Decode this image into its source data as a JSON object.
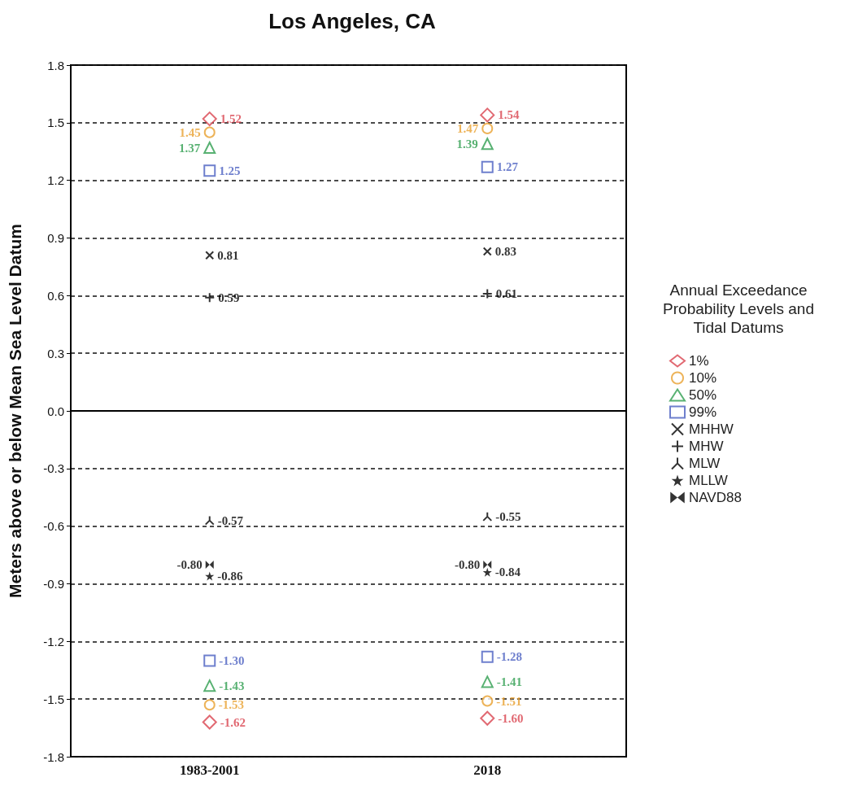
{
  "chart_data": {
    "type": "scatter",
    "title": "Los Angeles, CA",
    "ylabel": "Meters above or below Mean Sea Level Datum",
    "legend_title": "Annual Exceedance\nProbability Levels and\nTidal Datums",
    "categories": [
      "1983-2001",
      "2018"
    ],
    "series": [
      {
        "name": "1%",
        "color": "#d9434f",
        "marker": "diamond",
        "values": [
          1.52,
          1.54
        ],
        "value_labels": [
          "1.52",
          "1.54"
        ]
      },
      {
        "name": "10%",
        "color": "#e8a030",
        "marker": "circle",
        "values": [
          1.45,
          1.47
        ],
        "value_labels": [
          "1.45",
          "1.47"
        ]
      },
      {
        "name": "50%",
        "color": "#2e9e4f",
        "marker": "triangle",
        "values": [
          1.37,
          1.39
        ],
        "value_labels": [
          "1.37",
          "1.39"
        ]
      },
      {
        "name": "99%",
        "color": "#4a5fc1",
        "marker": "square",
        "values": [
          1.25,
          1.27
        ],
        "value_labels": [
          "1.25",
          "1.27"
        ]
      },
      {
        "name": "MHHW",
        "color": "#000000",
        "marker": "x",
        "values": [
          0.81,
          0.83
        ],
        "value_labels": [
          "0.81",
          "0.83"
        ]
      },
      {
        "name": "MHW",
        "color": "#000000",
        "marker": "plus",
        "values": [
          0.59,
          0.61
        ],
        "value_labels": [
          "0.59",
          "0.61"
        ]
      },
      {
        "name": "MLW",
        "color": "#000000",
        "values": [
          -0.57,
          -0.55
        ],
        "value_labels": [
          "-0.57",
          "-0.55"
        ]
      },
      {
        "name": "MLLW",
        "color": "#000000",
        "marker": "star",
        "values": [
          -0.86,
          -0.84
        ],
        "value_labels": [
          "-0.86",
          "-0.84"
        ]
      },
      {
        "name": "NAVD88",
        "color": "#000000",
        "values": [
          -0.8,
          -0.8
        ],
        "value_labels": [
          "-0.80",
          "-0.80"
        ]
      },
      {
        "color": "#d9434f",
        "marker": "diamond",
        "values": [
          -1.62,
          -1.6
        ],
        "value_labels": [
          "-1.62",
          "-1.60"
        ]
      },
      {
        "color": "#e8a030",
        "marker": "circle",
        "values": [
          -1.53,
          -1.51
        ],
        "value_labels": [
          "-1.53",
          "-1.51"
        ]
      },
      {
        "color": "#2e9e4f",
        "marker": "triangle",
        "values": [
          -1.43,
          -1.41
        ],
        "value_labels": [
          "-1.43",
          "-1.41"
        ]
      },
      {
        "color": "#4a5fc1",
        "marker": "square",
        "values": [
          -1.3,
          -1.28
        ],
        "value_labels": [
          "-1.30",
          "-1.28"
        ]
      }
    ],
    "ylim": [
      -1.8,
      1.8
    ],
    "yticks": [
      -1.8,
      -1.5,
      -1.2,
      -0.9,
      -0.6,
      -0.3,
      {
        "value": 0,
        "label": "0.0"
      },
      0.3,
      0.6,
      0.9,
      1.2,
      1.5,
      1.8
    ],
    "grid": "y",
    "ref_lines": [
      {
        "axis": "y",
        "value": 0
      }
    ],
    "legend": "right"
  }
}
